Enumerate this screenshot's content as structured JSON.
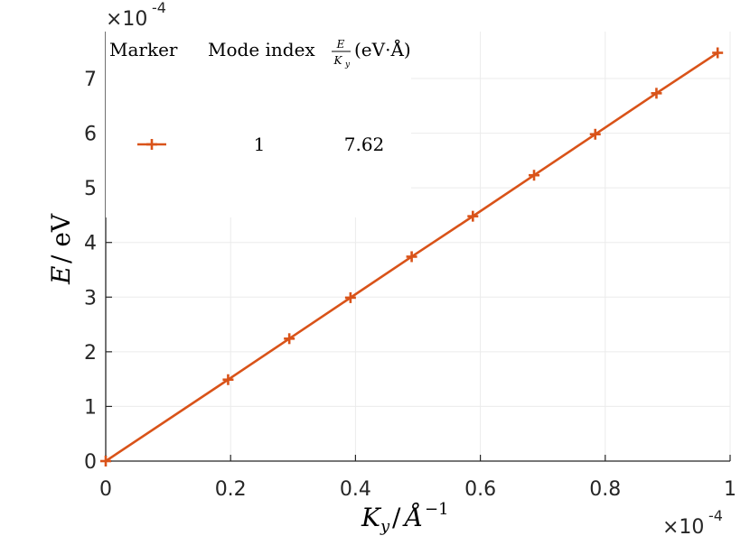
{
  "chart_data": {
    "type": "line",
    "title": "",
    "x_multiplier": {
      "base": "×10",
      "exponent": "-4"
    },
    "y_multiplier": {
      "base": "×10",
      "exponent": "-4"
    },
    "xlabel": {
      "main": "K",
      "sub": "y",
      "slash": "/",
      "unit": "Å",
      "sup": "−1"
    },
    "ylabel": {
      "var": "E",
      "rest": "/ eV"
    },
    "xlim": [
      0,
      1
    ],
    "ylim": [
      0,
      7.8
    ],
    "xticks": [
      0,
      0.2,
      0.4,
      0.6,
      0.8,
      1
    ],
    "xtick_labels": [
      "0",
      "0.2",
      "0.4",
      "0.6",
      "0.8",
      "1"
    ],
    "yticks": [
      0,
      1,
      2,
      3,
      4,
      5,
      6,
      7
    ],
    "ytick_labels": [
      "0",
      "1",
      "2",
      "3",
      "4",
      "5",
      "6",
      "7"
    ],
    "grid": true,
    "series": [
      {
        "color": "#D95319",
        "marker": "plus",
        "x": [
          0,
          0.196,
          0.294,
          0.392,
          0.49,
          0.588,
          0.686,
          0.784,
          0.882,
          0.98
        ],
        "y": [
          0,
          1.49,
          2.24,
          2.99,
          3.74,
          4.48,
          5.23,
          5.98,
          6.73,
          7.47
        ]
      }
    ],
    "legend": {
      "position": "top-left",
      "headers": {
        "marker": "Marker",
        "mode": "Mode index",
        "frac_num": "E",
        "frac_den": "K",
        "frac_den_sub": "y",
        "unit": "(eV·Å)"
      },
      "rows": [
        {
          "mode": "1",
          "value": "7.62"
        }
      ]
    }
  }
}
